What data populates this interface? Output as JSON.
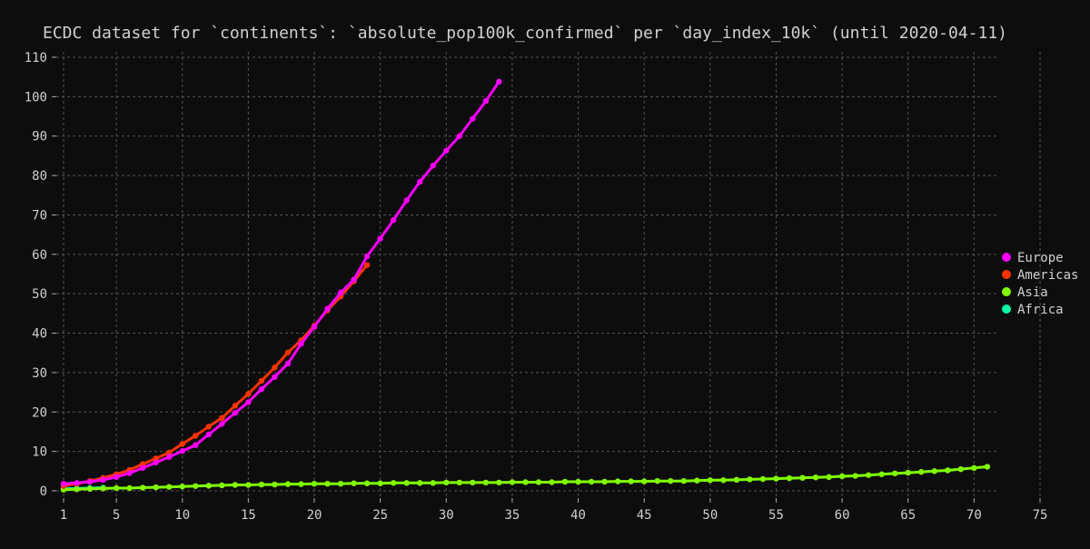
{
  "chart_data": {
    "type": "line",
    "title": "ECDC dataset for `continents`: `absolute_pop100k_confirmed` per `day_index_10k` (until 2020-04-11)",
    "xlabel": "",
    "ylabel": "",
    "xlim": [
      1,
      75
    ],
    "ylim": [
      0,
      110
    ],
    "x_ticks": [
      1,
      5,
      10,
      15,
      20,
      25,
      30,
      35,
      40,
      45,
      50,
      55,
      60,
      65,
      70,
      75
    ],
    "y_ticks": [
      0,
      10,
      20,
      30,
      40,
      50,
      60,
      70,
      80,
      90,
      100,
      110
    ],
    "grid": true,
    "legend_position": "right",
    "series": [
      {
        "name": "Europe",
        "color": "#ff00ff",
        "x": [
          1,
          2,
          3,
          4,
          5,
          6,
          7,
          8,
          9,
          10,
          11,
          12,
          13,
          14,
          15,
          16,
          17,
          18,
          19,
          20,
          21,
          22,
          23,
          24,
          25,
          26,
          27,
          28,
          29,
          30,
          31,
          32,
          33,
          34
        ],
        "y": [
          1.8,
          2.0,
          2.3,
          2.8,
          3.5,
          4.5,
          5.8,
          7.2,
          8.6,
          10.1,
          11.6,
          14.3,
          17.0,
          19.8,
          22.5,
          25.8,
          28.9,
          32.3,
          37.3,
          41.6,
          46.2,
          50.3,
          53.6,
          59.5,
          64.0,
          68.7,
          73.7,
          78.4,
          82.5,
          86.3,
          90.0,
          94.4,
          98.9,
          103.8
        ]
      },
      {
        "name": "Americas",
        "color": "#ff3300",
        "x": [
          1,
          2,
          3,
          4,
          5,
          6,
          7,
          8,
          9,
          10,
          11,
          12,
          13,
          14,
          15,
          16,
          17,
          18,
          19,
          20,
          21,
          22,
          23,
          24
        ],
        "y": [
          1.2,
          1.8,
          2.5,
          3.3,
          4.2,
          5.3,
          6.8,
          8.2,
          9.7,
          11.9,
          14.0,
          16.3,
          18.5,
          21.6,
          24.6,
          27.9,
          31.3,
          35.1,
          38.2,
          41.9,
          45.8,
          49.3,
          53.2,
          57.3
        ]
      },
      {
        "name": "Asia",
        "color": "#80ff00",
        "x": [
          1,
          2,
          3,
          4,
          5,
          6,
          7,
          8,
          9,
          10,
          11,
          12,
          13,
          14,
          15,
          16,
          17,
          18,
          19,
          20,
          21,
          22,
          23,
          24,
          25,
          26,
          27,
          28,
          29,
          30,
          31,
          32,
          33,
          34,
          35,
          36,
          37,
          38,
          39,
          40,
          41,
          42,
          43,
          44,
          45,
          46,
          47,
          48,
          49,
          50,
          51,
          52,
          53,
          54,
          55,
          56,
          57,
          58,
          59,
          60,
          61,
          62,
          63,
          64,
          65,
          66,
          67,
          68,
          69,
          70,
          71
        ],
        "y": [
          0.3,
          0.4,
          0.5,
          0.6,
          0.7,
          0.7,
          0.8,
          0.9,
          1.0,
          1.1,
          1.2,
          1.3,
          1.4,
          1.5,
          1.5,
          1.6,
          1.6,
          1.7,
          1.7,
          1.8,
          1.8,
          1.8,
          1.9,
          1.9,
          1.9,
          2.0,
          2.0,
          2.0,
          2.0,
          2.1,
          2.1,
          2.1,
          2.1,
          2.1,
          2.2,
          2.2,
          2.2,
          2.2,
          2.3,
          2.3,
          2.3,
          2.3,
          2.4,
          2.4,
          2.4,
          2.5,
          2.5,
          2.5,
          2.6,
          2.7,
          2.7,
          2.8,
          2.9,
          3.0,
          3.1,
          3.2,
          3.3,
          3.4,
          3.5,
          3.7,
          3.8,
          4.0,
          4.2,
          4.4,
          4.6,
          4.8,
          5.0,
          5.2,
          5.5,
          5.8,
          6.1
        ]
      },
      {
        "name": "Africa",
        "color": "#00ffaa",
        "x": [
          1,
          2,
          3,
          4
        ],
        "y": [
          0.5,
          0.6,
          0.7,
          0.8
        ]
      }
    ]
  }
}
